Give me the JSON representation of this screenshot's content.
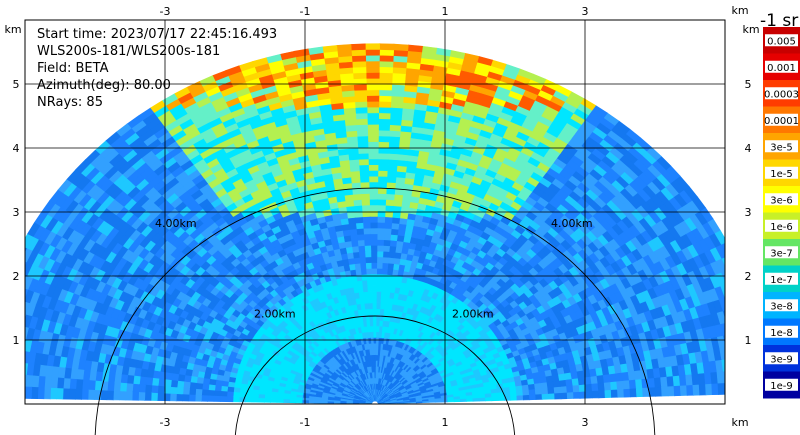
{
  "info": {
    "start_time": "Start time: 2023/07/17 22:45:16.493",
    "instrument": "WLS200s-181/WLS200s-181",
    "field": "Field: BETA",
    "azimuth": "Azimuth(deg): 80.00",
    "nrays": "NRays: 85"
  },
  "axes": {
    "x_unit": "km",
    "y_unit": "km",
    "x_ticks": [
      -3,
      -1,
      1,
      3
    ],
    "y_ticks": [
      1,
      2,
      3,
      4,
      5
    ],
    "xlim": [
      -5,
      5
    ],
    "ylim": [
      0,
      6
    ],
    "grid": true
  },
  "range_rings": [
    {
      "range_km": 2,
      "label": "2.00km"
    },
    {
      "range_km": 4,
      "label": "4.00km"
    }
  ],
  "colorbar": {
    "title": "-1 sr",
    "labels": [
      "0.005",
      "0.001",
      "0.0003",
      "0.0001",
      "3e-5",
      "1e-5",
      "3e-6",
      "1e-6",
      "3e-7",
      "1e-7",
      "3e-8",
      "1e-8",
      "3e-9",
      "1e-9"
    ],
    "colors": [
      "#c80000",
      "#e60000",
      "#ff3c00",
      "#ff7800",
      "#ffa500",
      "#ffd700",
      "#ffff00",
      "#c8f028",
      "#64e664",
      "#00d2c8",
      "#00b4ff",
      "#0078ff",
      "#0032dc",
      "#0000a0"
    ]
  },
  "chart_data": {
    "type": "heatmap",
    "description_field": "BETA",
    "units": "-1 sr",
    "scan_geometry": "RHI sector 0-180 deg elevation, max range about 5.5 km",
    "xlabel": "km",
    "ylabel": "km",
    "xlim": [
      -5,
      5
    ],
    "ylim": [
      0,
      6
    ],
    "color_scale": "log",
    "colorbar_range": [
      1e-09,
      0.005
    ]
  }
}
